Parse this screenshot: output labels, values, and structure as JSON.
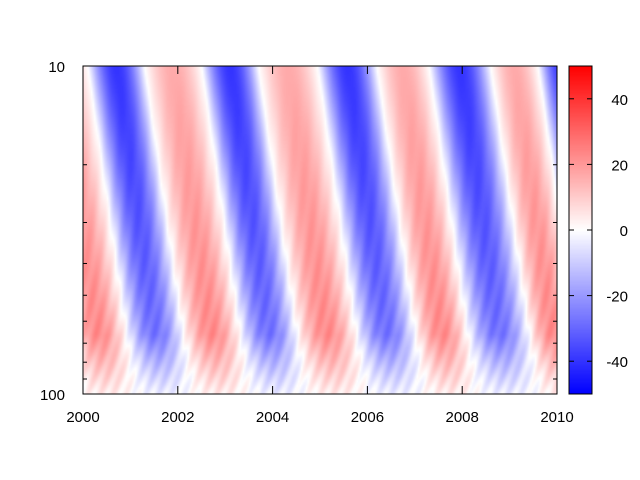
{
  "chart_data": {
    "type": "heatmap",
    "title": "",
    "xlabel": "",
    "ylabel": "",
    "x_range": [
      2000,
      2010
    ],
    "y_range": [
      10,
      100
    ],
    "y_scale": "log",
    "y_inverted": true,
    "x_ticks": [
      "2000",
      "2002",
      "2004",
      "2006",
      "2008",
      "2010"
    ],
    "y_ticks": [
      "10",
      "100"
    ],
    "colorbar": {
      "range": [
        -50,
        50
      ],
      "ticks": [
        "40",
        "20",
        "0",
        "-20",
        "-40"
      ],
      "colors": [
        "#0000ff",
        "#ffffff",
        "#ff0000"
      ]
    },
    "oscillation": {
      "period_years": 2.3,
      "zero_wind_at_10_years": [
        2001.3,
        2002.5,
        2003.7,
        2004.95,
        2006.2,
        2007.3,
        2008.6,
        2009.6
      ],
      "descent_lag_years": 1.0,
      "amplitude_easterly": -40,
      "amplitude_westerly": 22
    }
  },
  "colorbar": {
    "ticks": [
      "40",
      "20",
      "0",
      "-20",
      "-40"
    ]
  }
}
